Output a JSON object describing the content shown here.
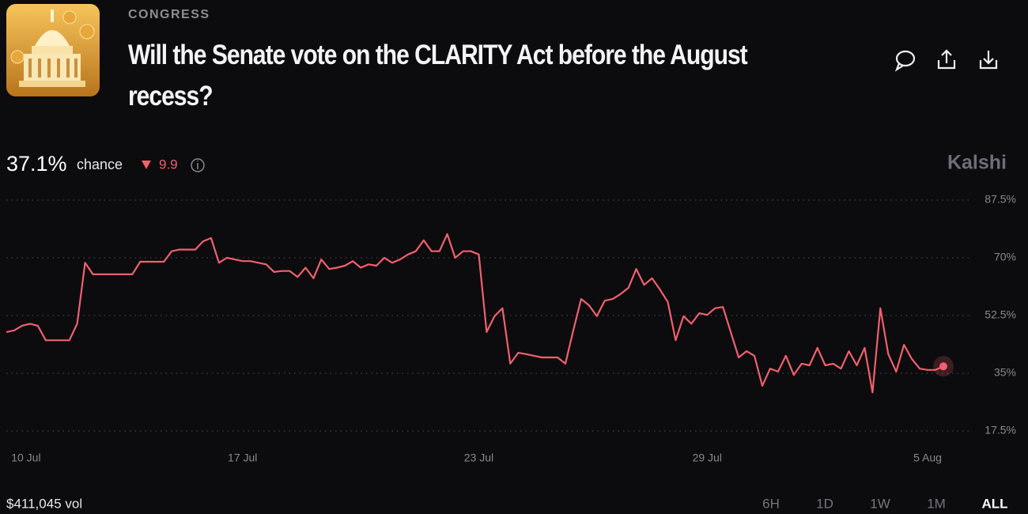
{
  "header": {
    "category": "CONGRESS",
    "title": "Will the Senate vote on the CLARITY Act before the August recess?"
  },
  "summary": {
    "chance": "37.1%",
    "chance_label": "chance",
    "change": "9.9",
    "brand": "Kalshi"
  },
  "footer": {
    "volume": "$411,045 vol",
    "ranges": [
      "6H",
      "1D",
      "1W",
      "1M",
      "ALL"
    ],
    "selected_range": 4
  },
  "chart_data": {
    "type": "line",
    "color": "#f0606e",
    "grid": true,
    "x": [
      0,
      1,
      2,
      3,
      4,
      5,
      6,
      7,
      8,
      9,
      10,
      11,
      12,
      13,
      14,
      15,
      16,
      17,
      18,
      19,
      20,
      21,
      22,
      23,
      24,
      25,
      26,
      27,
      28,
      29,
      30,
      31,
      32,
      33,
      34,
      35,
      36,
      37,
      38,
      39,
      40,
      41,
      42,
      43,
      44,
      45,
      46,
      47,
      48,
      49,
      50,
      51,
      52,
      53,
      54,
      55,
      56,
      57,
      58,
      59,
      60,
      61,
      62,
      63,
      64,
      65,
      66,
      67,
      68,
      69,
      70,
      71,
      72,
      73,
      74,
      75,
      76,
      77,
      78,
      79,
      80,
      81,
      82,
      83,
      84,
      85,
      86,
      87,
      88,
      89,
      90,
      91,
      92,
      93,
      94,
      95,
      96,
      97,
      98,
      99,
      100,
      101,
      102,
      103,
      104,
      105,
      106,
      107,
      108,
      109,
      110,
      111,
      112,
      113,
      114,
      115,
      116,
      117,
      118,
      119
    ],
    "values": [
      47.5,
      48,
      49.4,
      50,
      49.4,
      45,
      45,
      45,
      45,
      50,
      68.5,
      65,
      65,
      65,
      65,
      65,
      65,
      68.8,
      68.8,
      68.8,
      68.8,
      72,
      72.5,
      72.5,
      72.5,
      75,
      76,
      68.5,
      70,
      69.5,
      69,
      69,
      68.5,
      68,
      65.7,
      66,
      66,
      64.2,
      67,
      63.8,
      69.5,
      66.6,
      67,
      67.6,
      69,
      67,
      68,
      67.6,
      70,
      68.5,
      69.5,
      71,
      72,
      75.3,
      72,
      72,
      77.2,
      70,
      72,
      72,
      71,
      47.5,
      52.3,
      54.7,
      37.9,
      41.2,
      40.8,
      40.3,
      39.8,
      39.8,
      39.8,
      37.9,
      48,
      57.5,
      55.6,
      52.3,
      57,
      57.5,
      59,
      60.9,
      66.6,
      61.8,
      63.8,
      60.4,
      56.6,
      45,
      52.3,
      50,
      53.2,
      52.7,
      54.7,
      55.1,
      47.5,
      39.8,
      41.7,
      40.3,
      31.2,
      36.4,
      35.5,
      40.3,
      34.5,
      37.9,
      37.4,
      42.7,
      37.4,
      37.9,
      36.4,
      41.7,
      37.4,
      42.7,
      29.2,
      54.7,
      40.8,
      35.5,
      43.6,
      39.3,
      36.4,
      36,
      36,
      37.1
    ],
    "xlim": [
      0,
      119
    ],
    "xticks": [
      {
        "value": 2.5,
        "label": "10 Jul"
      },
      {
        "value": 30,
        "label": "17 Jul"
      },
      {
        "value": 60,
        "label": "23 Jul"
      },
      {
        "value": 89,
        "label": "29 Jul"
      },
      {
        "value": 117,
        "label": "5 Aug"
      }
    ],
    "ylim": [
      17.5,
      87.5
    ],
    "yticks": [
      {
        "value": 17.5,
        "label": "17.5%"
      },
      {
        "value": 35,
        "label": "35%"
      },
      {
        "value": 52.5,
        "label": "52.5%"
      },
      {
        "value": 70,
        "label": "70%"
      },
      {
        "value": 87.5,
        "label": "87.5%"
      }
    ]
  }
}
